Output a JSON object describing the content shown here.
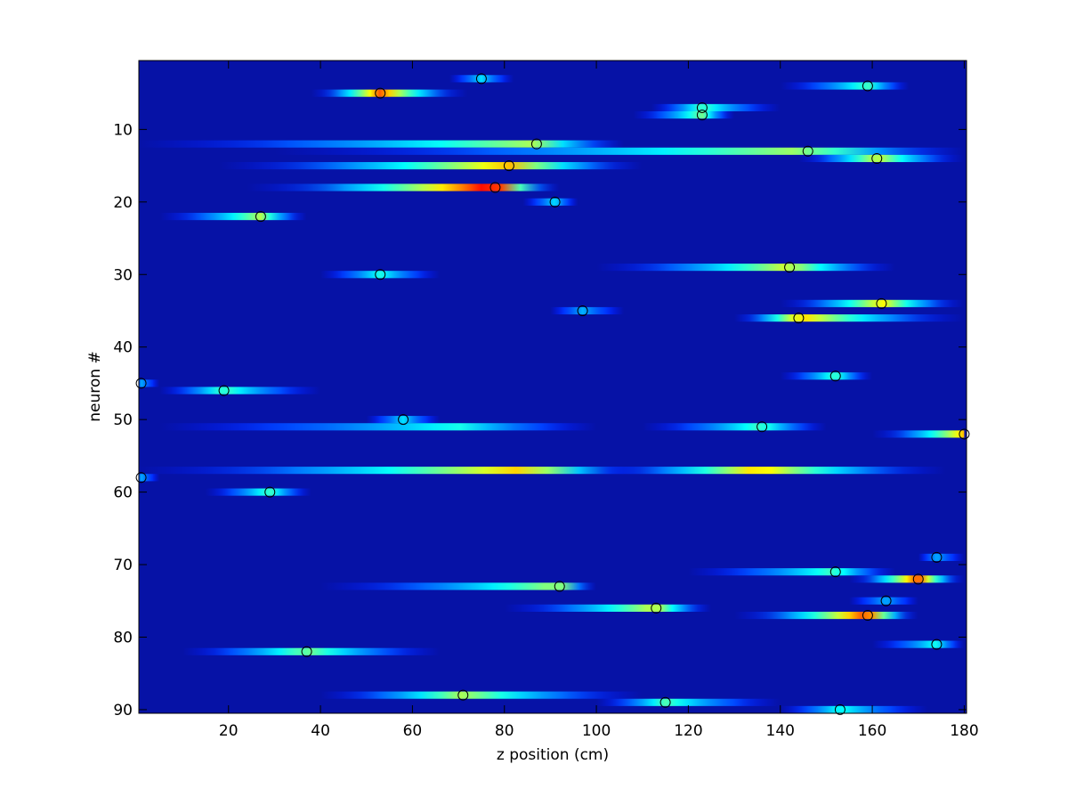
{
  "chart_data": {
    "type": "heatmap",
    "x_label": "z position (cm)",
    "y_label": "neuron #",
    "xlim": [
      0.5,
      180.5
    ],
    "ylim": [
      0.5,
      90.5
    ],
    "y_reversed": true,
    "xticks": [
      20,
      40,
      60,
      80,
      100,
      120,
      140,
      160,
      180
    ],
    "yticks": [
      10,
      20,
      30,
      40,
      50,
      60,
      70,
      80,
      90
    ],
    "background_color": "#0612a6",
    "marker_color": "#000000",
    "fields": [
      {
        "neuron": 3,
        "start": 68,
        "end": 82,
        "peak": 75,
        "value": 0.35
      },
      {
        "neuron": 5,
        "start": 38,
        "end": 72,
        "peak": 53,
        "value": 0.8
      },
      {
        "neuron": 4,
        "start": 140,
        "end": 168,
        "peak": 159,
        "value": 0.45
      },
      {
        "neuron": 7,
        "start": 112,
        "end": 140,
        "peak": 123,
        "value": 0.45
      },
      {
        "neuron": 8,
        "start": 108,
        "end": 130,
        "peak": 123,
        "value": 0.5
      },
      {
        "neuron": 12,
        "start": 0,
        "end": 106,
        "peak": 87,
        "value": 0.55
      },
      {
        "neuron": 13,
        "start": 30,
        "end": 180,
        "peak": 146,
        "value": 0.55
      },
      {
        "neuron": 14,
        "start": 144,
        "end": 180,
        "peak": 161,
        "value": 0.6
      },
      {
        "neuron": 15,
        "start": 18,
        "end": 110,
        "peak": 81,
        "value": 0.7
      },
      {
        "neuron": 18,
        "start": 24,
        "end": 92,
        "peak": 78,
        "value": 0.95
      },
      {
        "neuron": 20,
        "start": 84,
        "end": 96,
        "peak": 91,
        "value": 0.35
      },
      {
        "neuron": 22,
        "start": 5,
        "end": 37,
        "peak": 27,
        "value": 0.55
      },
      {
        "neuron": 29,
        "start": 100,
        "end": 165,
        "peak": 142,
        "value": 0.6
      },
      {
        "neuron": 30,
        "start": 40,
        "end": 66,
        "peak": 53,
        "value": 0.4
      },
      {
        "neuron": 34,
        "start": 140,
        "end": 180,
        "peak": 162,
        "value": 0.65
      },
      {
        "neuron": 35,
        "start": 90,
        "end": 106,
        "peak": 97,
        "value": 0.3
      },
      {
        "neuron": 36,
        "start": 130,
        "end": 180,
        "peak": 144,
        "value": 0.7
      },
      {
        "neuron": 44,
        "start": 140,
        "end": 160,
        "peak": 152,
        "value": 0.45
      },
      {
        "neuron": 45,
        "start": 0,
        "end": 5,
        "peak": 1,
        "value": 0.3
      },
      {
        "neuron": 46,
        "start": 5,
        "end": 40,
        "peak": 19,
        "value": 0.45
      },
      {
        "neuron": 50,
        "start": 50,
        "end": 66,
        "peak": 58,
        "value": 0.35
      },
      {
        "neuron": 51,
        "start": 5,
        "end": 100,
        "peak": 70,
        "value": 0.4
      },
      {
        "neuron": 51,
        "start": 110,
        "end": 150,
        "peak": 136,
        "value": 0.45
      },
      {
        "neuron": 52,
        "start": 160,
        "end": 180,
        "peak": 180,
        "value": 0.7
      },
      {
        "neuron": 57,
        "start": 0,
        "end": 110,
        "peak": 85,
        "value": 0.7
      },
      {
        "neuron": 57,
        "start": 100,
        "end": 176,
        "peak": 135,
        "value": 0.7
      },
      {
        "neuron": 58,
        "start": 0,
        "end": 5,
        "peak": 1,
        "value": 0.3
      },
      {
        "neuron": 60,
        "start": 15,
        "end": 38,
        "peak": 29,
        "value": 0.45
      },
      {
        "neuron": 69,
        "start": 170,
        "end": 180,
        "peak": 174,
        "value": 0.3
      },
      {
        "neuron": 71,
        "start": 120,
        "end": 165,
        "peak": 152,
        "value": 0.45
      },
      {
        "neuron": 72,
        "start": 155,
        "end": 180,
        "peak": 170,
        "value": 0.85
      },
      {
        "neuron": 73,
        "start": 40,
        "end": 100,
        "peak": 92,
        "value": 0.55
      },
      {
        "neuron": 75,
        "start": 155,
        "end": 170,
        "peak": 163,
        "value": 0.3
      },
      {
        "neuron": 76,
        "start": 80,
        "end": 125,
        "peak": 113,
        "value": 0.6
      },
      {
        "neuron": 77,
        "start": 130,
        "end": 170,
        "peak": 159,
        "value": 0.85
      },
      {
        "neuron": 81,
        "start": 160,
        "end": 180,
        "peak": 174,
        "value": 0.4
      },
      {
        "neuron": 82,
        "start": 10,
        "end": 66,
        "peak": 37,
        "value": 0.5
      },
      {
        "neuron": 88,
        "start": 40,
        "end": 110,
        "peak": 71,
        "value": 0.55
      },
      {
        "neuron": 89,
        "start": 100,
        "end": 140,
        "peak": 115,
        "value": 0.45
      },
      {
        "neuron": 90,
        "start": 140,
        "end": 172,
        "peak": 153,
        "value": 0.4
      }
    ],
    "peaks": {
      "x": [
        75,
        53,
        159,
        123,
        123,
        87,
        146,
        161,
        81,
        78,
        91,
        27,
        142,
        53,
        162,
        97,
        144,
        152,
        1,
        19,
        58,
        136,
        180,
        1,
        29,
        174,
        152,
        170,
        92,
        163,
        113,
        159,
        174,
        37,
        71,
        115,
        153
      ],
      "neuron": [
        3,
        5,
        4,
        7,
        8,
        12,
        13,
        14,
        15,
        18,
        20,
        22,
        29,
        30,
        34,
        35,
        36,
        44,
        45,
        46,
        50,
        51,
        52,
        58,
        60,
        69,
        71,
        72,
        73,
        75,
        76,
        77,
        81,
        82,
        88,
        89,
        90
      ]
    }
  }
}
